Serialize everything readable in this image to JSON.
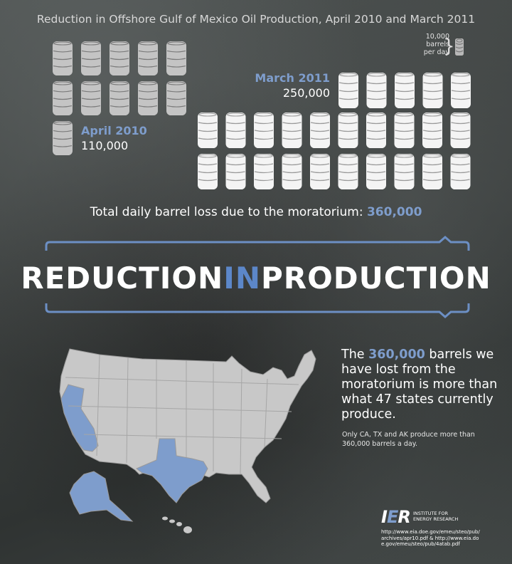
{
  "title": "Reduction in Offshore Gulf of Mexico Oil Production, April 2010 and March 2011",
  "legend": {
    "label_line1": "10,000",
    "label_line2": "barrels",
    "label_line3": "per day",
    "barrel_units": 10000
  },
  "march": {
    "label": "March 2011",
    "value_text": "250,000",
    "barrels": 25
  },
  "april": {
    "label": "April 2010",
    "value_text": "110,000",
    "barrels": 11
  },
  "loss": {
    "text": "Total daily barrel loss due to the moratorium:",
    "value": "360,000"
  },
  "headline": {
    "part1": "REDUCTION",
    "part2": "IN",
    "part3": "PRODUCTION"
  },
  "paragraph": {
    "pre": "The ",
    "num": "360,000",
    "post": " barrels we have lost from the moratorium is more than what 47 states currently produce."
  },
  "note": "Only CA, TX and AK produce more than 360,000 barrels a day.",
  "highlighted_states": [
    "California",
    "Texas",
    "Alaska"
  ],
  "logo": {
    "mark_a": "I",
    "mark_b": "E",
    "mark_c": "R",
    "line1": "INSTITUTE FOR",
    "line2": "ENERGY RESEARCH"
  },
  "sources": "http://www.eia.doe.gov/emeu/steo/pub/archives/apr10.pdf & http://www.eia.doe.gov/emeu/steo/pub/4atab.pdf",
  "colors": {
    "accent_blue": "#7e9dcc",
    "map_gray": "#c8c8c8",
    "barrel_white": "#f4f4f4",
    "barrel_gray": "#c4c4c4"
  },
  "icons": [
    "barrel-icon",
    "brace-icon",
    "us-map",
    "ier-logo"
  ]
}
